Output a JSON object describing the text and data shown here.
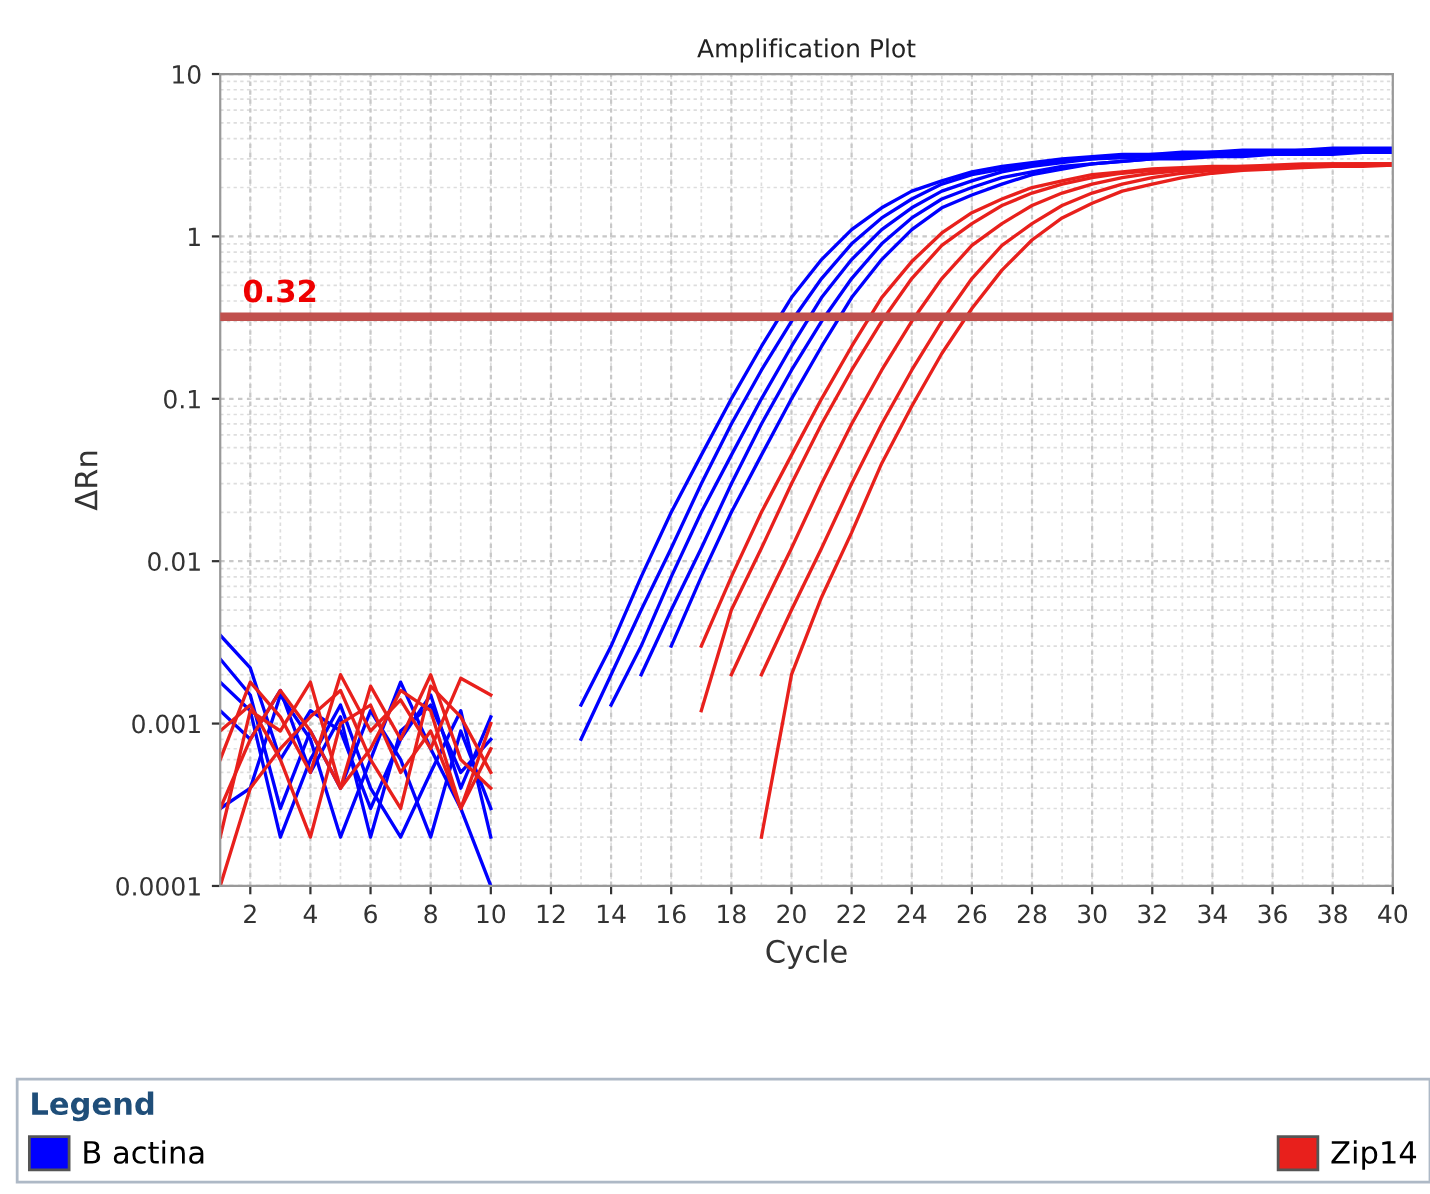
{
  "chart_data": {
    "type": "line",
    "title": "Amplification Plot",
    "xlabel": "Cycle",
    "ylabel": "ΔRn",
    "xlim": [
      1,
      40
    ],
    "ylim": [
      0.0001,
      10
    ],
    "log": "y",
    "xticks": [
      2,
      4,
      6,
      8,
      10,
      12,
      14,
      16,
      18,
      20,
      22,
      24,
      26,
      28,
      30,
      32,
      34,
      36,
      38,
      40
    ],
    "yticks": [
      0.0001,
      0.001,
      0.01,
      0.1,
      1,
      10
    ],
    "grid": true,
    "legend": "bottom",
    "legend_title": "Legend",
    "line_style": "solid",
    "marker": "none",
    "ref_lines": [
      {
        "axis": "y",
        "value": 0.32,
        "label": "0.32",
        "color": "#c0504d"
      }
    ],
    "series": [
      {
        "name": "B actina",
        "color": "#0000ff",
        "x": [
          1,
          2,
          3,
          4,
          5,
          6,
          7,
          8,
          9,
          10,
          11,
          13,
          14,
          15,
          16,
          17,
          18,
          19,
          20,
          21,
          22,
          23,
          24,
          25,
          26,
          27,
          28,
          29,
          30,
          31,
          32,
          33,
          34,
          35,
          36,
          37,
          38,
          39,
          40
        ],
        "values": [
          0.0035,
          0.0022,
          0.0006,
          0.0012,
          0.0009,
          0.0003,
          0.0008,
          0.0015,
          0.0004,
          0.0011,
          null,
          0.0008,
          0.002,
          0.005,
          0.012,
          0.03,
          0.07,
          0.15,
          0.3,
          0.55,
          0.9,
          1.3,
          1.7,
          2.1,
          2.4,
          2.6,
          2.8,
          2.9,
          3.0,
          3.1,
          3.2,
          3.2,
          3.3,
          3.3,
          3.3,
          3.4,
          3.4,
          3.4,
          3.4
        ]
      },
      {
        "color": "#0000ff",
        "x": [
          1,
          2,
          3,
          4,
          5,
          6,
          7,
          8,
          9,
          10,
          11,
          14,
          15,
          16,
          17,
          18,
          19,
          20,
          21,
          22,
          23,
          24,
          25,
          26,
          27,
          28,
          29,
          30,
          31,
          32,
          33,
          34,
          35,
          36,
          37,
          38,
          39,
          40
        ],
        "values": [
          0.0025,
          0.0015,
          0.0003,
          0.0009,
          0.0004,
          0.0012,
          0.0006,
          0.0002,
          0.0009,
          0.0003,
          null,
          0.0013,
          0.003,
          0.008,
          0.02,
          0.045,
          0.1,
          0.21,
          0.42,
          0.72,
          1.1,
          1.5,
          1.9,
          2.2,
          2.5,
          2.7,
          2.85,
          3.0,
          3.05,
          3.1,
          3.2,
          3.2,
          3.3,
          3.3,
          3.3,
          3.35,
          3.4,
          3.4
        ]
      },
      {
        "color": "#0000ff",
        "x": [
          1,
          2,
          3,
          4,
          5,
          6,
          7,
          8,
          9,
          10,
          11,
          13,
          14,
          15,
          16,
          17,
          18,
          19,
          20,
          21,
          22,
          23,
          24,
          25,
          26,
          27,
          28,
          29,
          30,
          31,
          32,
          33,
          34,
          35,
          36,
          37,
          38,
          39,
          40
        ],
        "values": [
          0.0003,
          0.0004,
          0.0015,
          0.0008,
          0.0002,
          0.0006,
          0.0018,
          0.0007,
          0.0003,
          0.0001,
          null,
          0.0013,
          0.003,
          0.008,
          0.02,
          0.045,
          0.1,
          0.21,
          0.42,
          0.72,
          1.1,
          1.5,
          1.9,
          2.2,
          2.5,
          2.7,
          2.85,
          3.0,
          3.1,
          3.2,
          3.2,
          3.3,
          3.3,
          3.4,
          3.4,
          3.4,
          3.5,
          3.5,
          3.5
        ]
      },
      {
        "color": "#0000ff",
        "x": [
          1,
          2,
          3,
          4,
          5,
          6,
          7,
          8,
          9,
          10,
          11,
          15,
          16,
          17,
          18,
          19,
          20,
          21,
          22,
          23,
          24,
          25,
          26,
          27,
          28,
          29,
          30,
          31,
          32,
          33,
          34,
          35,
          36,
          37,
          38,
          39,
          40
        ],
        "values": [
          0.0012,
          0.0008,
          0.0016,
          0.0005,
          0.0011,
          0.0002,
          0.0009,
          0.0013,
          0.0005,
          0.0008,
          null,
          0.002,
          0.005,
          0.012,
          0.03,
          0.07,
          0.15,
          0.3,
          0.55,
          0.9,
          1.3,
          1.7,
          2.0,
          2.3,
          2.5,
          2.7,
          2.8,
          2.9,
          3.0,
          3.1,
          3.1,
          3.2,
          3.2,
          3.2,
          3.3,
          3.3,
          3.3
        ]
      },
      {
        "color": "#0000ff",
        "x": [
          1,
          2,
          3,
          4,
          5,
          6,
          7,
          8,
          9,
          10,
          11,
          16,
          17,
          18,
          19,
          20,
          21,
          22,
          23,
          24,
          25,
          26,
          27,
          28,
          29,
          30,
          31,
          32,
          33,
          34,
          35,
          36,
          37,
          38,
          39,
          40
        ],
        "values": [
          0.0018,
          0.0012,
          0.0002,
          0.0006,
          0.0013,
          0.0004,
          0.0002,
          0.0005,
          0.0012,
          0.0002,
          null,
          0.003,
          0.008,
          0.02,
          0.045,
          0.1,
          0.21,
          0.42,
          0.72,
          1.1,
          1.5,
          1.8,
          2.1,
          2.4,
          2.6,
          2.8,
          2.9,
          3.0,
          3.0,
          3.1,
          3.1,
          3.2,
          3.2,
          3.2,
          3.3,
          3.3
        ]
      },
      {
        "name": "Zip14",
        "color": "#e8201c",
        "x": [
          1,
          2,
          3,
          4,
          5,
          6,
          7,
          8,
          9,
          10,
          11,
          17,
          18,
          19,
          20,
          21,
          22,
          23,
          24,
          25,
          26,
          27,
          28,
          29,
          30,
          31,
          32,
          33,
          34,
          35,
          36,
          37,
          38,
          39,
          40
        ],
        "values": [
          0.0006,
          0.0018,
          0.0011,
          0.0005,
          0.002,
          0.0009,
          0.0014,
          0.0007,
          0.0019,
          0.0015,
          null,
          0.003,
          0.008,
          0.02,
          0.045,
          0.1,
          0.21,
          0.42,
          0.7,
          1.05,
          1.4,
          1.7,
          2.0,
          2.2,
          2.4,
          2.5,
          2.6,
          2.65,
          2.7,
          2.7,
          2.75,
          2.8,
          2.8,
          2.8,
          2.8
        ]
      },
      {
        "color": "#e8201c",
        "x": [
          1,
          2,
          3,
          4,
          5,
          6,
          7,
          8,
          9,
          10,
          11,
          17,
          18,
          19,
          20,
          21,
          22,
          23,
          24,
          25,
          26,
          27,
          28,
          29,
          30,
          31,
          32,
          33,
          34,
          35,
          36,
          37,
          38,
          39,
          40
        ],
        "values": [
          0.0003,
          0.0008,
          0.0016,
          0.0009,
          0.0004,
          0.0017,
          0.0008,
          0.002,
          0.0006,
          0.0004,
          null,
          0.0012,
          0.005,
          0.012,
          0.03,
          0.07,
          0.15,
          0.3,
          0.55,
          0.88,
          1.2,
          1.55,
          1.85,
          2.1,
          2.3,
          2.45,
          2.55,
          2.6,
          2.65,
          2.7,
          2.7,
          2.75,
          2.8,
          2.8,
          2.8
        ]
      },
      {
        "color": "#e8201c",
        "x": [
          1,
          2,
          3,
          4,
          5,
          6,
          7,
          8,
          9,
          10,
          11,
          18,
          19,
          20,
          21,
          22,
          23,
          24,
          25,
          26,
          27,
          28,
          29,
          30,
          31,
          32,
          33,
          34,
          35,
          36,
          37,
          38,
          39,
          40
        ],
        "values": [
          0.0001,
          0.0004,
          0.0007,
          0.0011,
          0.0016,
          0.0006,
          0.0003,
          0.0017,
          0.0011,
          0.0005,
          null,
          0.002,
          0.005,
          0.012,
          0.03,
          0.07,
          0.15,
          0.3,
          0.55,
          0.88,
          1.2,
          1.55,
          1.85,
          2.1,
          2.3,
          2.45,
          2.55,
          2.6,
          2.65,
          2.7,
          2.7,
          2.75,
          2.8,
          2.8
        ]
      },
      {
        "color": "#e8201c",
        "x": [
          1,
          2,
          3,
          4,
          5,
          6,
          7,
          8,
          9,
          10,
          11,
          19,
          20,
          21,
          22,
          23,
          24,
          25,
          26,
          27,
          28,
          29,
          30,
          31,
          32,
          33,
          34,
          35,
          36,
          37,
          38,
          39,
          40
        ],
        "values": [
          0.0009,
          0.0013,
          0.0006,
          0.0002,
          0.001,
          0.0013,
          0.0005,
          0.0009,
          0.0003,
          0.0007,
          null,
          0.002,
          0.005,
          0.012,
          0.03,
          0.07,
          0.15,
          0.3,
          0.55,
          0.88,
          1.2,
          1.55,
          1.85,
          2.1,
          2.3,
          2.45,
          2.55,
          2.6,
          2.65,
          2.7,
          2.7,
          2.75,
          2.75
        ]
      },
      {
        "color": "#e8201c",
        "x": [
          1,
          2,
          3,
          4,
          5,
          6,
          7,
          8,
          9,
          10,
          11,
          19,
          20,
          21,
          22,
          23,
          24,
          25,
          26,
          27,
          28,
          29,
          30,
          31,
          32,
          33,
          34,
          35,
          36,
          37,
          38,
          39,
          40
        ],
        "values": [
          0.0002,
          0.0012,
          0.0009,
          0.0018,
          0.0004,
          0.0007,
          0.0016,
          0.0012,
          0.0003,
          0.001,
          null,
          0.0002,
          0.002,
          0.006,
          0.015,
          0.04,
          0.09,
          0.19,
          0.36,
          0.62,
          0.95,
          1.3,
          1.6,
          1.9,
          2.1,
          2.3,
          2.45,
          2.55,
          2.6,
          2.65,
          2.7,
          2.7,
          2.75
        ]
      }
    ]
  }
}
